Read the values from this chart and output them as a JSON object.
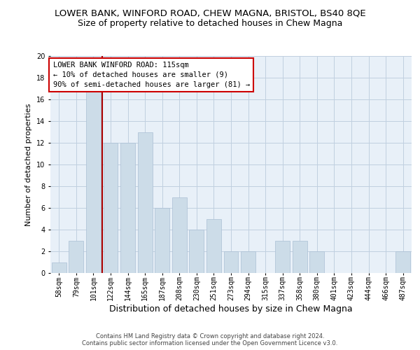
{
  "title": "LOWER BANK, WINFORD ROAD, CHEW MAGNA, BRISTOL, BS40 8QE",
  "subtitle": "Size of property relative to detached houses in Chew Magna",
  "xlabel": "Distribution of detached houses by size in Chew Magna",
  "ylabel": "Number of detached properties",
  "footnote1": "Contains HM Land Registry data © Crown copyright and database right 2024.",
  "footnote2": "Contains public sector information licensed under the Open Government Licence v3.0.",
  "bar_labels": [
    "58sqm",
    "79sqm",
    "101sqm",
    "122sqm",
    "144sqm",
    "165sqm",
    "187sqm",
    "208sqm",
    "230sqm",
    "251sqm",
    "273sqm",
    "294sqm",
    "315sqm",
    "337sqm",
    "358sqm",
    "380sqm",
    "401sqm",
    "423sqm",
    "444sqm",
    "466sqm",
    "487sqm"
  ],
  "bar_values": [
    1,
    3,
    17,
    12,
    12,
    13,
    6,
    7,
    4,
    5,
    2,
    2,
    0,
    3,
    3,
    2,
    0,
    0,
    0,
    0,
    2
  ],
  "bar_color": "#ccdce8",
  "bar_edgecolor": "#aabfd4",
  "vline_x_index": 2.5,
  "vline_color": "#aa0000",
  "annotation_text": "LOWER BANK WINFORD ROAD: 115sqm\n← 10% of detached houses are smaller (9)\n90% of semi-detached houses are larger (81) →",
  "annotation_box_facecolor": "#ffffff",
  "annotation_box_edgecolor": "#cc0000",
  "ylim": [
    0,
    20
  ],
  "yticks": [
    0,
    2,
    4,
    6,
    8,
    10,
    12,
    14,
    16,
    18,
    20
  ],
  "grid_color": "#c0d0e0",
  "background_color": "#e8f0f8",
  "title_fontsize": 9.5,
  "subtitle_fontsize": 9,
  "ylabel_fontsize": 8,
  "xlabel_fontsize": 9,
  "tick_fontsize": 7,
  "annot_fontsize": 7.5,
  "footnote_fontsize": 6
}
